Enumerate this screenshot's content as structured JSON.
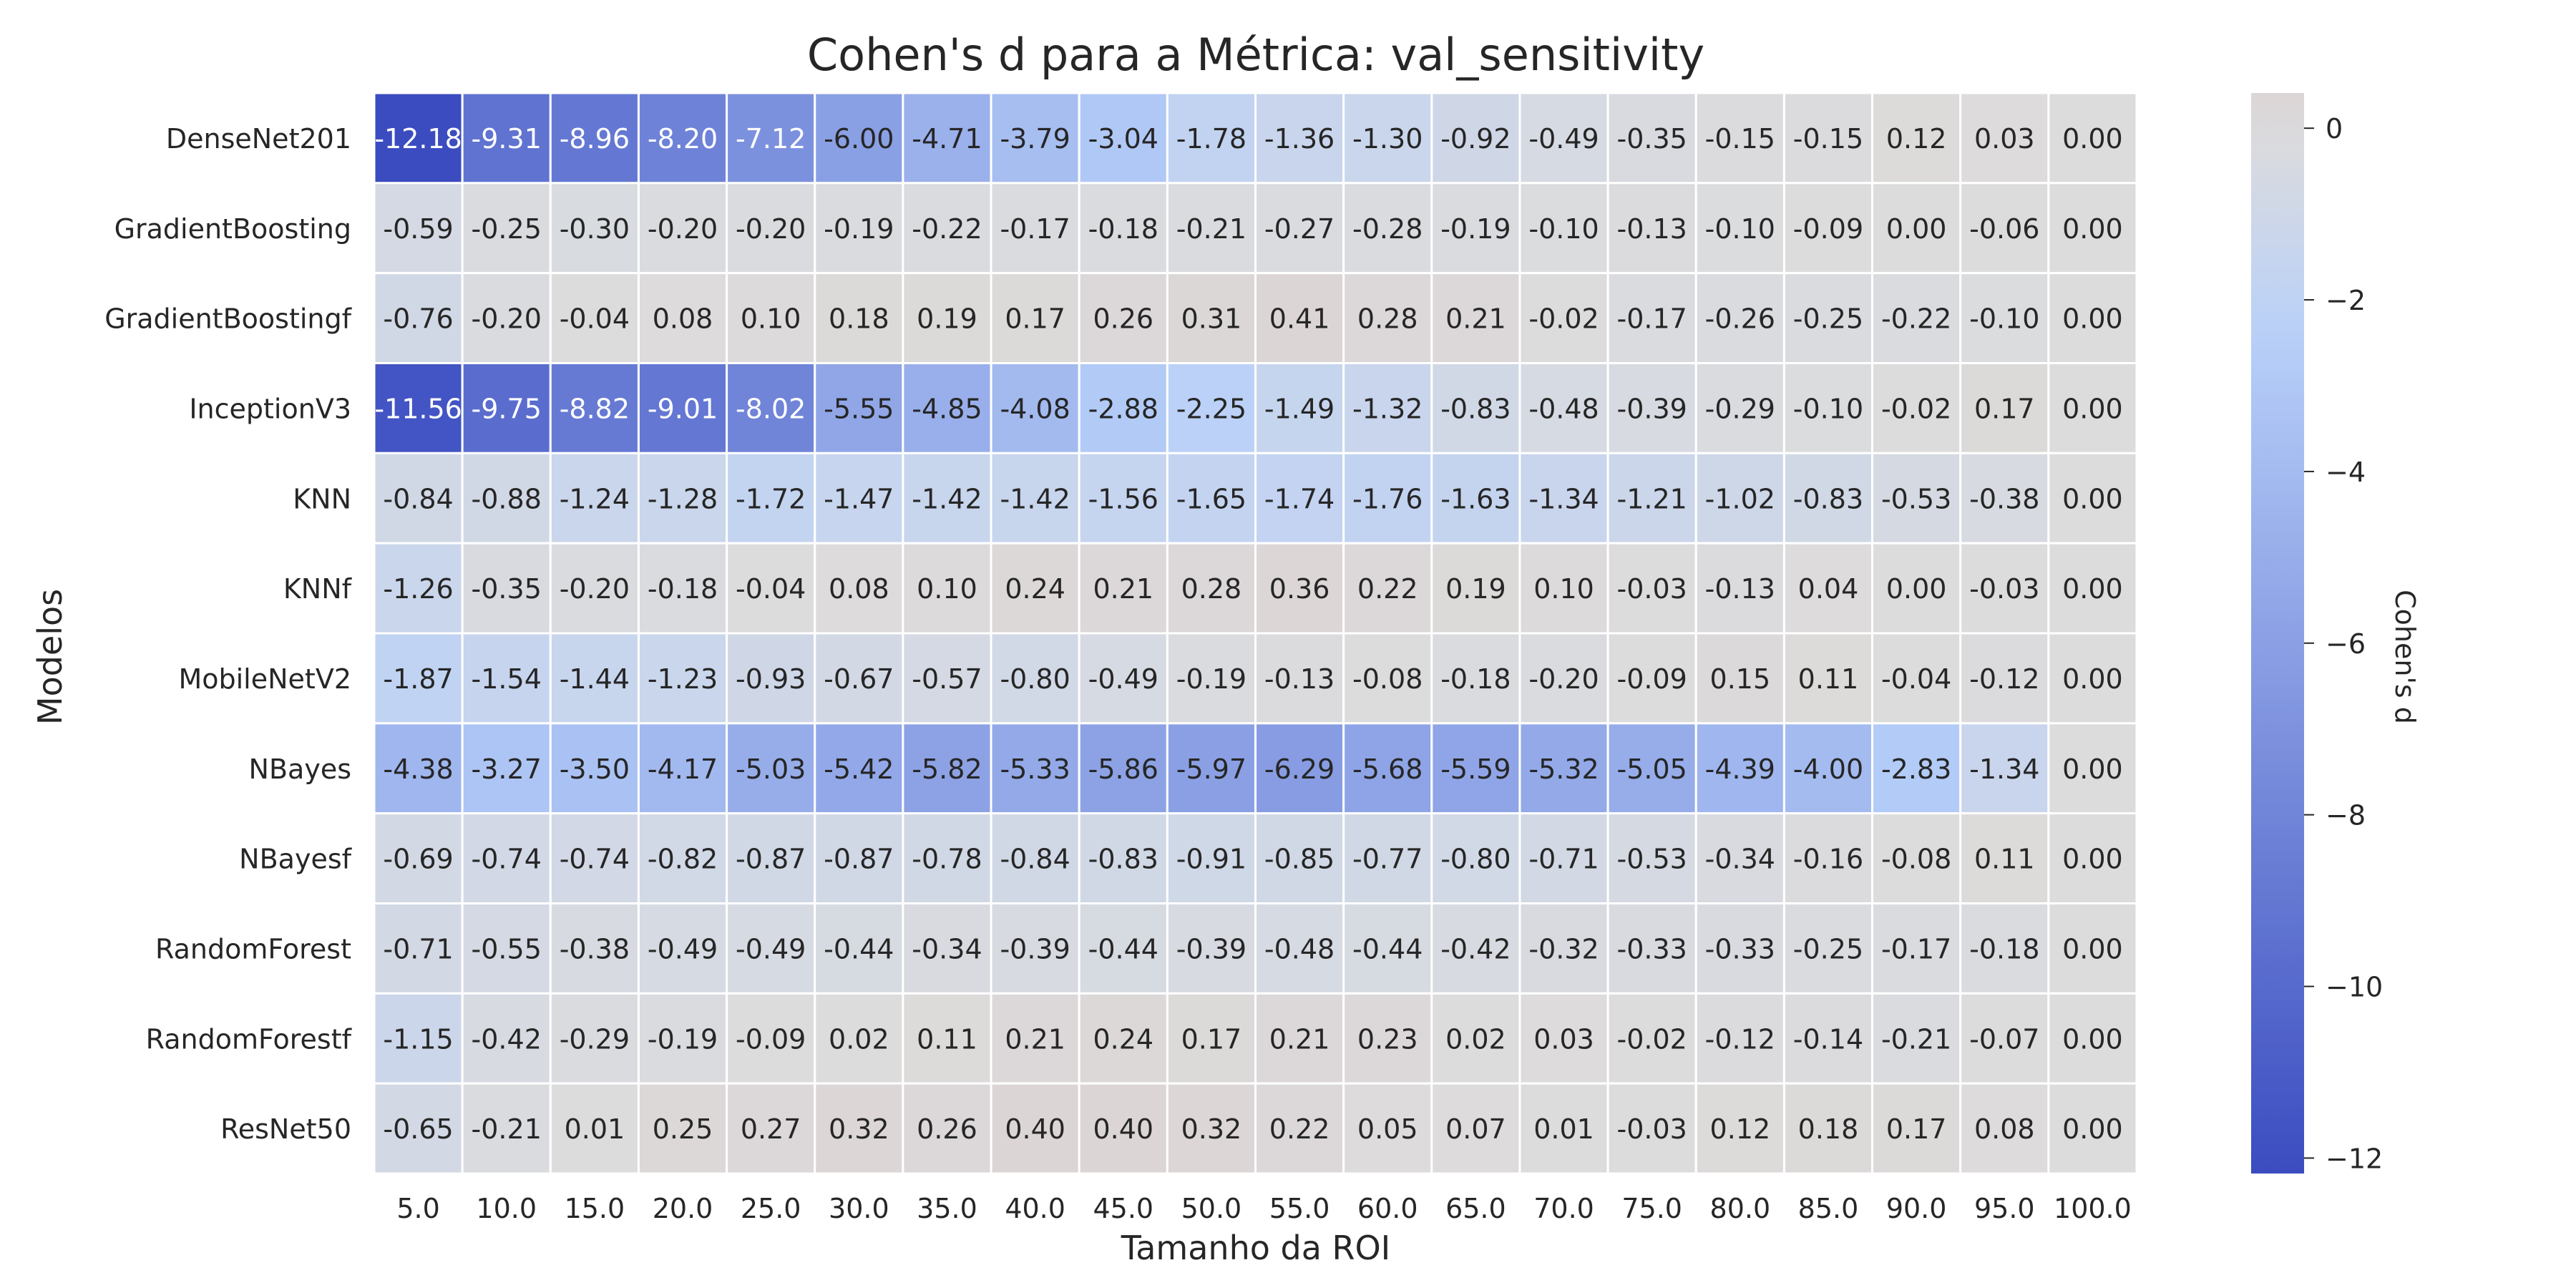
{
  "chart_data": {
    "type": "heatmap",
    "title": "Cohen's d para a Métrica: val_sensitivity",
    "xlabel": "Tamanho da ROI",
    "ylabel": "Modelos",
    "colorbar_label": "Cohen's d",
    "colorbar_ticks": [
      0,
      -2,
      -4,
      -6,
      -8,
      -10,
      -12
    ],
    "colorbar_tick_labels": [
      "0",
      "−2",
      "−4",
      "−6",
      "−8",
      "−10",
      "−12"
    ],
    "vmin": -12.18,
    "vmax": 0.41,
    "colormap": {
      "low": "#3b4cc0",
      "mid": "#dddcdc",
      "high": "#b40426",
      "center": 0
    },
    "x_categories": [
      "5.0",
      "10.0",
      "15.0",
      "20.0",
      "25.0",
      "30.0",
      "35.0",
      "40.0",
      "45.0",
      "50.0",
      "55.0",
      "60.0",
      "65.0",
      "70.0",
      "75.0",
      "80.0",
      "85.0",
      "90.0",
      "95.0",
      "100.0"
    ],
    "y_categories": [
      "DenseNet201",
      "GradientBoosting",
      "GradientBoostingf",
      "InceptionV3",
      "KNN",
      "KNNf",
      "MobileNetV2",
      "NBayes",
      "NBayesf",
      "RandomForest",
      "RandomForestf",
      "ResNet50"
    ],
    "values": [
      [
        -12.18,
        -9.31,
        -8.96,
        -8.2,
        -7.12,
        -6.0,
        -4.71,
        -3.79,
        -3.04,
        -1.78,
        -1.36,
        -1.3,
        -0.92,
        -0.49,
        -0.35,
        -0.15,
        -0.15,
        0.12,
        0.03,
        0.0
      ],
      [
        -0.59,
        -0.25,
        -0.3,
        -0.2,
        -0.2,
        -0.19,
        -0.22,
        -0.17,
        -0.18,
        -0.21,
        -0.27,
        -0.28,
        -0.19,
        -0.1,
        -0.13,
        -0.1,
        -0.09,
        0.0,
        -0.06,
        0.0
      ],
      [
        -0.76,
        -0.2,
        -0.04,
        0.08,
        0.1,
        0.18,
        0.19,
        0.17,
        0.26,
        0.31,
        0.41,
        0.28,
        0.21,
        -0.02,
        -0.17,
        -0.26,
        -0.25,
        -0.22,
        -0.1,
        0.0
      ],
      [
        -11.56,
        -9.75,
        -8.82,
        -9.01,
        -8.02,
        -5.55,
        -4.85,
        -4.08,
        -2.88,
        -2.25,
        -1.49,
        -1.32,
        -0.83,
        -0.48,
        -0.39,
        -0.29,
        -0.1,
        -0.02,
        0.17,
        0.0
      ],
      [
        -0.84,
        -0.88,
        -1.24,
        -1.28,
        -1.72,
        -1.47,
        -1.42,
        -1.42,
        -1.56,
        -1.65,
        -1.74,
        -1.76,
        -1.63,
        -1.34,
        -1.21,
        -1.02,
        -0.83,
        -0.53,
        -0.38,
        0.0
      ],
      [
        -1.26,
        -0.35,
        -0.2,
        -0.18,
        -0.04,
        0.08,
        0.1,
        0.24,
        0.21,
        0.28,
        0.36,
        0.22,
        0.19,
        0.1,
        -0.03,
        -0.13,
        0.04,
        0.0,
        -0.03,
        0.0
      ],
      [
        -1.87,
        -1.54,
        -1.44,
        -1.23,
        -0.93,
        -0.67,
        -0.57,
        -0.8,
        -0.49,
        -0.19,
        -0.13,
        -0.08,
        -0.18,
        -0.2,
        -0.09,
        0.15,
        0.11,
        -0.04,
        -0.12,
        0.0
      ],
      [
        -4.38,
        -3.27,
        -3.5,
        -4.17,
        -5.03,
        -5.42,
        -5.82,
        -5.33,
        -5.86,
        -5.97,
        -6.29,
        -5.68,
        -5.59,
        -5.32,
        -5.05,
        -4.39,
        -4.0,
        -2.83,
        -1.34,
        0.0
      ],
      [
        -0.69,
        -0.74,
        -0.74,
        -0.82,
        -0.87,
        -0.87,
        -0.78,
        -0.84,
        -0.83,
        -0.91,
        -0.85,
        -0.77,
        -0.8,
        -0.71,
        -0.53,
        -0.34,
        -0.16,
        -0.08,
        0.11,
        0.0
      ],
      [
        -0.71,
        -0.55,
        -0.38,
        -0.49,
        -0.49,
        -0.44,
        -0.34,
        -0.39,
        -0.44,
        -0.39,
        -0.48,
        -0.44,
        -0.42,
        -0.32,
        -0.33,
        -0.33,
        -0.25,
        -0.17,
        -0.18,
        0.0
      ],
      [
        -1.15,
        -0.42,
        -0.29,
        -0.19,
        -0.09,
        0.02,
        0.11,
        0.21,
        0.24,
        0.17,
        0.21,
        0.23,
        0.02,
        0.03,
        -0.02,
        -0.12,
        -0.14,
        -0.21,
        -0.07,
        0.0
      ],
      [
        -0.65,
        -0.21,
        0.01,
        0.25,
        0.27,
        0.32,
        0.26,
        0.4,
        0.4,
        0.32,
        0.22,
        0.05,
        0.07,
        0.01,
        -0.03,
        0.12,
        0.18,
        0.17,
        0.08,
        0.0
      ]
    ]
  }
}
